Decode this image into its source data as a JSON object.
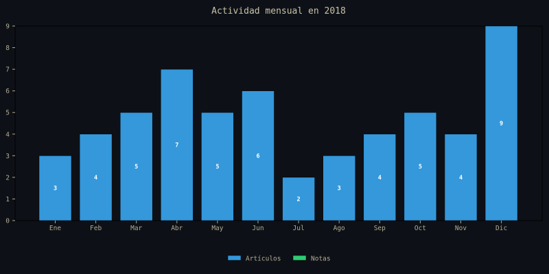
{
  "chart_data": {
    "type": "bar",
    "title": "Actividad mensual en 2018",
    "xlabel": "",
    "ylabel": "",
    "categories": [
      "Ene",
      "Feb",
      "Mar",
      "Abr",
      "May",
      "Jun",
      "Jul",
      "Ago",
      "Sep",
      "Oct",
      "Nov",
      "Dic"
    ],
    "series": [
      {
        "name": "Artículos",
        "color": "#3498db",
        "values": [
          3,
          4,
          5,
          7,
          5,
          6,
          2,
          3,
          4,
          5,
          4,
          9
        ]
      },
      {
        "name": "Notas",
        "color": "#2ecc71",
        "values": [
          0,
          0,
          0,
          0,
          0,
          0,
          0,
          0,
          0,
          0,
          0,
          0
        ]
      }
    ],
    "ylim": [
      0,
      9
    ],
    "yticks": [
      0,
      1,
      2,
      3,
      4,
      5,
      6,
      7,
      8,
      9
    ],
    "grid": false,
    "legend_position": "bottom-center",
    "background_color": "#0d1117",
    "axis_color": "#000000",
    "text_color": "#b3ab92"
  }
}
